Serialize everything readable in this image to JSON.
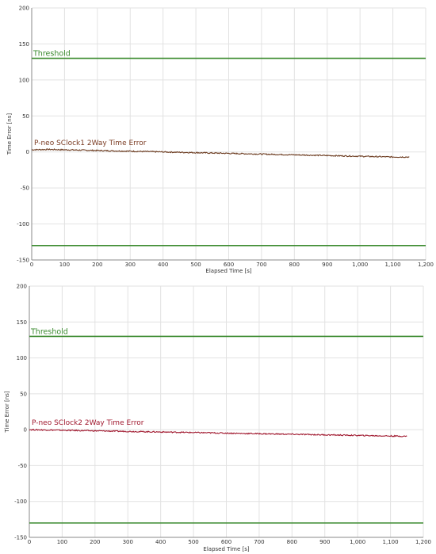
{
  "chart_data": [
    {
      "type": "line",
      "xlabel": "Elapsed Time [s]",
      "ylabel": "Time Error [ns]",
      "xlim": [
        0,
        1200
      ],
      "ylim": [
        -150,
        200
      ],
      "x_ticks": [
        "0",
        "100",
        "200",
        "300",
        "400",
        "500",
        "600",
        "700",
        "800",
        "900",
        "1,000",
        "1,100",
        "1,200"
      ],
      "y_ticks": [
        "200",
        "150",
        "100",
        "50",
        "0",
        "-50",
        "-100",
        "-150"
      ],
      "grid": true,
      "threshold": {
        "label": "Threshold",
        "upper": 130,
        "lower": -130,
        "color": "#3a8a2e"
      },
      "series": [
        {
          "name": "P-neo SClock1 2Way Time Error",
          "color": "#6b3a1e",
          "label_color": "#7a3b22",
          "x": [
            0,
            50,
            100,
            150,
            200,
            250,
            300,
            350,
            400,
            450,
            500,
            550,
            600,
            650,
            700,
            750,
            800,
            850,
            900,
            950,
            1000,
            1050,
            1100,
            1150
          ],
          "y": [
            3,
            3.5,
            3,
            2.5,
            2,
            1.5,
            1,
            0.5,
            0,
            -0.5,
            -1,
            -1.5,
            -2,
            -2.5,
            -3,
            -3.5,
            -4,
            -4.5,
            -5,
            -5.5,
            -6,
            -6.5,
            -7,
            -7
          ]
        }
      ]
    },
    {
      "type": "line",
      "xlabel": "Elapsed Time [s]",
      "ylabel": "Time Error [ns]",
      "xlim": [
        0,
        1200
      ],
      "ylim": [
        -150,
        200
      ],
      "x_ticks": [
        "0",
        "100",
        "200",
        "300",
        "400",
        "500",
        "600",
        "700",
        "800",
        "900",
        "1,000",
        "1,100",
        "1,200"
      ],
      "y_ticks": [
        "200",
        "150",
        "100",
        "50",
        "0",
        "-50",
        "-100",
        "-150"
      ],
      "grid": true,
      "threshold": {
        "label": "Threshold",
        "upper": 130,
        "lower": -130,
        "color": "#3a8a2e"
      },
      "series": [
        {
          "name": "P-neo SClock2 2Way Time Error",
          "color": "#a0182e",
          "label_color": "#a0182e",
          "x": [
            0,
            50,
            100,
            150,
            200,
            250,
            300,
            350,
            400,
            450,
            500,
            550,
            600,
            650,
            700,
            750,
            800,
            850,
            900,
            950,
            1000,
            1050,
            1100,
            1150
          ],
          "y": [
            0,
            -0.4,
            -0.8,
            -1.2,
            -1.6,
            -2,
            -2.4,
            -2.8,
            -3.2,
            -3.6,
            -4,
            -4.4,
            -4.8,
            -5.2,
            -5.6,
            -6,
            -6.4,
            -6.8,
            -7.2,
            -7.6,
            -8,
            -8.4,
            -8.8,
            -9.2
          ]
        }
      ]
    }
  ]
}
